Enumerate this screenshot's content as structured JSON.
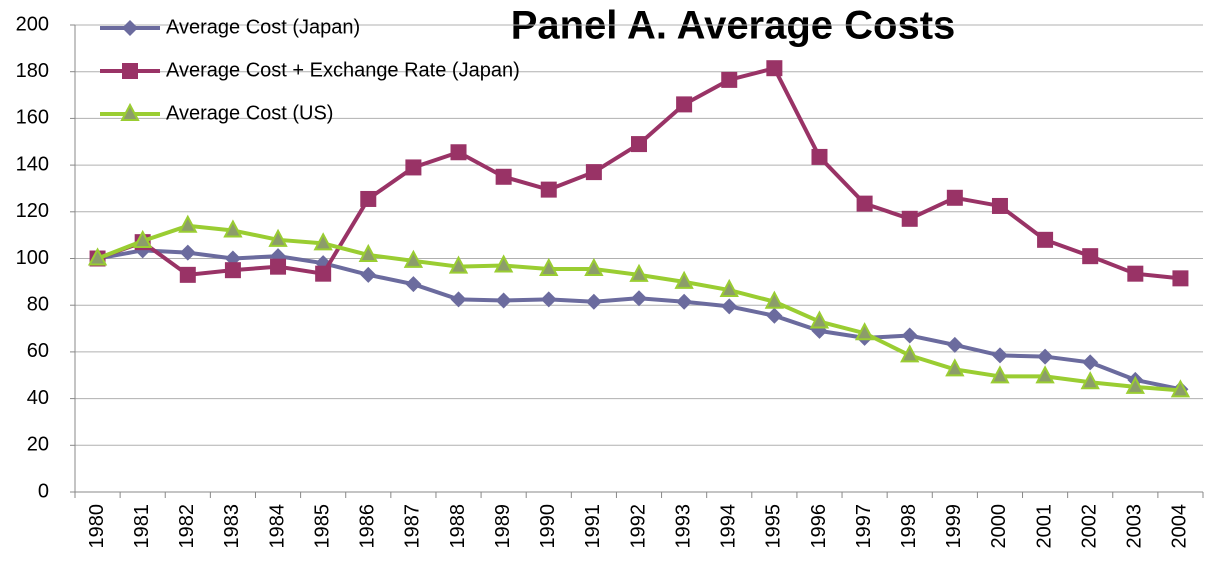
{
  "chart_data": {
    "type": "line",
    "title": "Panel A. Average Costs",
    "categories": [
      "1980",
      "1981",
      "1982",
      "1983",
      "1984",
      "1985",
      "1986",
      "1987",
      "1988",
      "1989",
      "1990",
      "1991",
      "1992",
      "1993",
      "1994",
      "1995",
      "1996",
      "1997",
      "1998",
      "1999",
      "2000",
      "2001",
      "2002",
      "2003",
      "2004"
    ],
    "series": [
      {
        "name": "Average Cost (Japan)",
        "color": "#6b6b9e",
        "marker": "diamond",
        "values": [
          100,
          103.5,
          102.5,
          100,
          101,
          98,
          93,
          89,
          82.5,
          82,
          82.5,
          81.5,
          83,
          81.5,
          79.5,
          75.5,
          69,
          66,
          67,
          63,
          58.5,
          58,
          55.5,
          48,
          44
        ]
      },
      {
        "name": "Average Cost + Exchange Rate (Japan)",
        "color": "#993366",
        "marker": "square",
        "values": [
          100,
          107,
          93,
          95,
          96.5,
          93.5,
          125.5,
          139,
          145.5,
          135,
          129.5,
          137,
          149,
          166,
          176.5,
          181.5,
          143.5,
          123.5,
          117,
          126,
          122.5,
          108,
          101,
          93.5,
          91.5
        ]
      },
      {
        "name": "Average Cost (US)",
        "color": "#9acd32",
        "marker": "triangle",
        "values": [
          100,
          107.5,
          114,
          112,
          108,
          106.5,
          101.5,
          99,
          96.5,
          97,
          95.5,
          95.5,
          93,
          90,
          86.5,
          81.5,
          73,
          68,
          58.5,
          52.5,
          49.5,
          49.5,
          47,
          45,
          43.5
        ]
      }
    ],
    "ylim": [
      0,
      200
    ],
    "yticks": [
      0,
      20,
      40,
      60,
      80,
      100,
      120,
      140,
      160,
      180,
      200
    ],
    "grid": true,
    "legend": "top-left"
  }
}
